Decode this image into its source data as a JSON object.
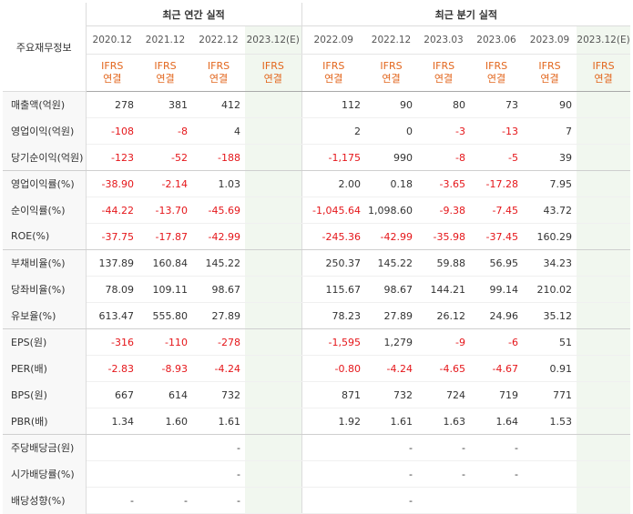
{
  "corner_label": "주요재무정보",
  "groups": {
    "annual": "최근 연간 실적",
    "quarter": "최근 분기 실적"
  },
  "periods": {
    "annual": [
      "2020.12",
      "2021.12",
      "2022.12",
      "2023.12(E)"
    ],
    "quarter": [
      "2022.09",
      "2022.12",
      "2023.03",
      "2023.06",
      "2023.09",
      "2023.12(E)"
    ]
  },
  "standard": {
    "ifrs": "IFRS",
    "type": "연결"
  },
  "rows": [
    {
      "label": "매출액(억원)",
      "values": [
        "278",
        "381",
        "412",
        "",
        "112",
        "90",
        "80",
        "73",
        "90",
        ""
      ]
    },
    {
      "label": "영업이익(억원)",
      "values": [
        "-108",
        "-8",
        "4",
        "",
        "2",
        "0",
        "-3",
        "-13",
        "7",
        ""
      ]
    },
    {
      "label": "당기순이익(억원)",
      "values": [
        "-123",
        "-52",
        "-188",
        "",
        "-1,175",
        "990",
        "-8",
        "-5",
        "39",
        ""
      ]
    },
    {
      "label": "영업이익률(%)",
      "values": [
        "-38.90",
        "-2.14",
        "1.03",
        "",
        "2.00",
        "0.18",
        "-3.65",
        "-17.28",
        "7.95",
        ""
      ]
    },
    {
      "label": "순이익률(%)",
      "values": [
        "-44.22",
        "-13.70",
        "-45.69",
        "",
        "-1,045.64",
        "1,098.60",
        "-9.38",
        "-7.45",
        "43.72",
        ""
      ]
    },
    {
      "label": "ROE(%)",
      "values": [
        "-37.75",
        "-17.87",
        "-42.99",
        "",
        "-245.36",
        "-42.99",
        "-35.98",
        "-37.45",
        "160.29",
        ""
      ]
    },
    {
      "label": "부채비율(%)",
      "values": [
        "137.89",
        "160.84",
        "145.22",
        "",
        "250.37",
        "145.22",
        "59.88",
        "56.95",
        "34.23",
        ""
      ]
    },
    {
      "label": "당좌비율(%)",
      "values": [
        "78.09",
        "109.11",
        "98.67",
        "",
        "115.67",
        "98.67",
        "144.21",
        "99.14",
        "210.02",
        ""
      ]
    },
    {
      "label": "유보율(%)",
      "values": [
        "613.47",
        "555.80",
        "27.89",
        "",
        "78.23",
        "27.89",
        "26.12",
        "24.96",
        "35.12",
        ""
      ]
    },
    {
      "label": "EPS(원)",
      "values": [
        "-316",
        "-110",
        "-278",
        "",
        "-1,595",
        "1,279",
        "-9",
        "-6",
        "51",
        ""
      ]
    },
    {
      "label": "PER(배)",
      "values": [
        "-2.83",
        "-8.93",
        "-4.24",
        "",
        "-0.80",
        "-4.24",
        "-4.65",
        "-4.67",
        "0.91",
        ""
      ]
    },
    {
      "label": "BPS(원)",
      "values": [
        "667",
        "614",
        "732",
        "",
        "871",
        "732",
        "724",
        "719",
        "771",
        ""
      ]
    },
    {
      "label": "PBR(배)",
      "values": [
        "1.34",
        "1.60",
        "1.61",
        "",
        "1.92",
        "1.61",
        "1.63",
        "1.64",
        "1.53",
        ""
      ]
    },
    {
      "label": "주당배당금(원)",
      "values": [
        "",
        "",
        "-",
        "",
        "",
        "-",
        "-",
        "-",
        "",
        ""
      ]
    },
    {
      "label": "시가배당률(%)",
      "values": [
        "",
        "",
        "-",
        "",
        "",
        "-",
        "-",
        "-",
        "",
        ""
      ]
    },
    {
      "label": "배당성향(%)",
      "values": [
        "-",
        "-",
        "-",
        "",
        "",
        "-",
        "",
        "",
        "",
        ""
      ]
    }
  ],
  "colors": {
    "negative": "#e5161a",
    "ifrs": "#e2661d",
    "estimate_bg": "#f1f7ef",
    "label_bg": "#f8f8f8"
  }
}
